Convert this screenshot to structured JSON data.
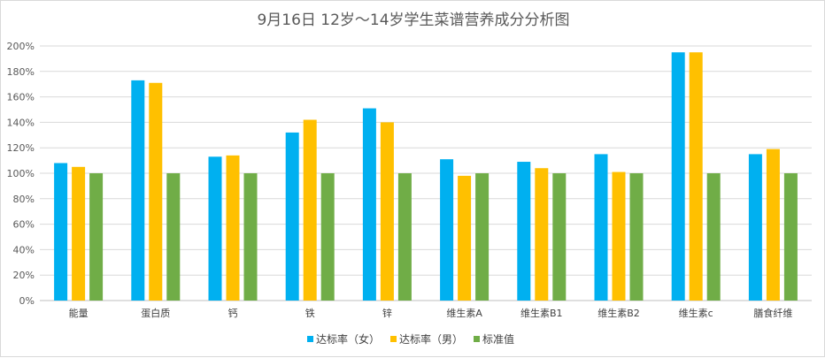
{
  "chart_data": {
    "type": "bar",
    "title": "9月16日 12岁～14岁学生菜谱营养成分分析图",
    "categories": [
      "能量",
      "蛋白质",
      "钙",
      "铁",
      "锌",
      "维生素A",
      "维生素B1",
      "维生素B2",
      "维生素c",
      "膳食纤维"
    ],
    "series": [
      {
        "name": "达标率（女）",
        "color": "#00b0f0",
        "values": [
          108,
          173,
          113,
          132,
          151,
          111,
          109,
          115,
          195,
          115
        ]
      },
      {
        "name": "达标率（男）",
        "color": "#ffc000",
        "values": [
          105,
          171,
          114,
          142,
          140,
          98,
          104,
          101,
          195,
          119
        ]
      },
      {
        "name": "标准值",
        "color": "#70ad47",
        "values": [
          100,
          100,
          100,
          100,
          100,
          100,
          100,
          100,
          100,
          100
        ]
      }
    ],
    "y_ticks": [
      "0%",
      "20%",
      "40%",
      "60%",
      "80%",
      "100%",
      "120%",
      "140%",
      "160%",
      "180%",
      "200%"
    ],
    "ylim": [
      0,
      200
    ],
    "grid": true,
    "legend_position": "bottom",
    "xlabel": "",
    "ylabel": ""
  }
}
